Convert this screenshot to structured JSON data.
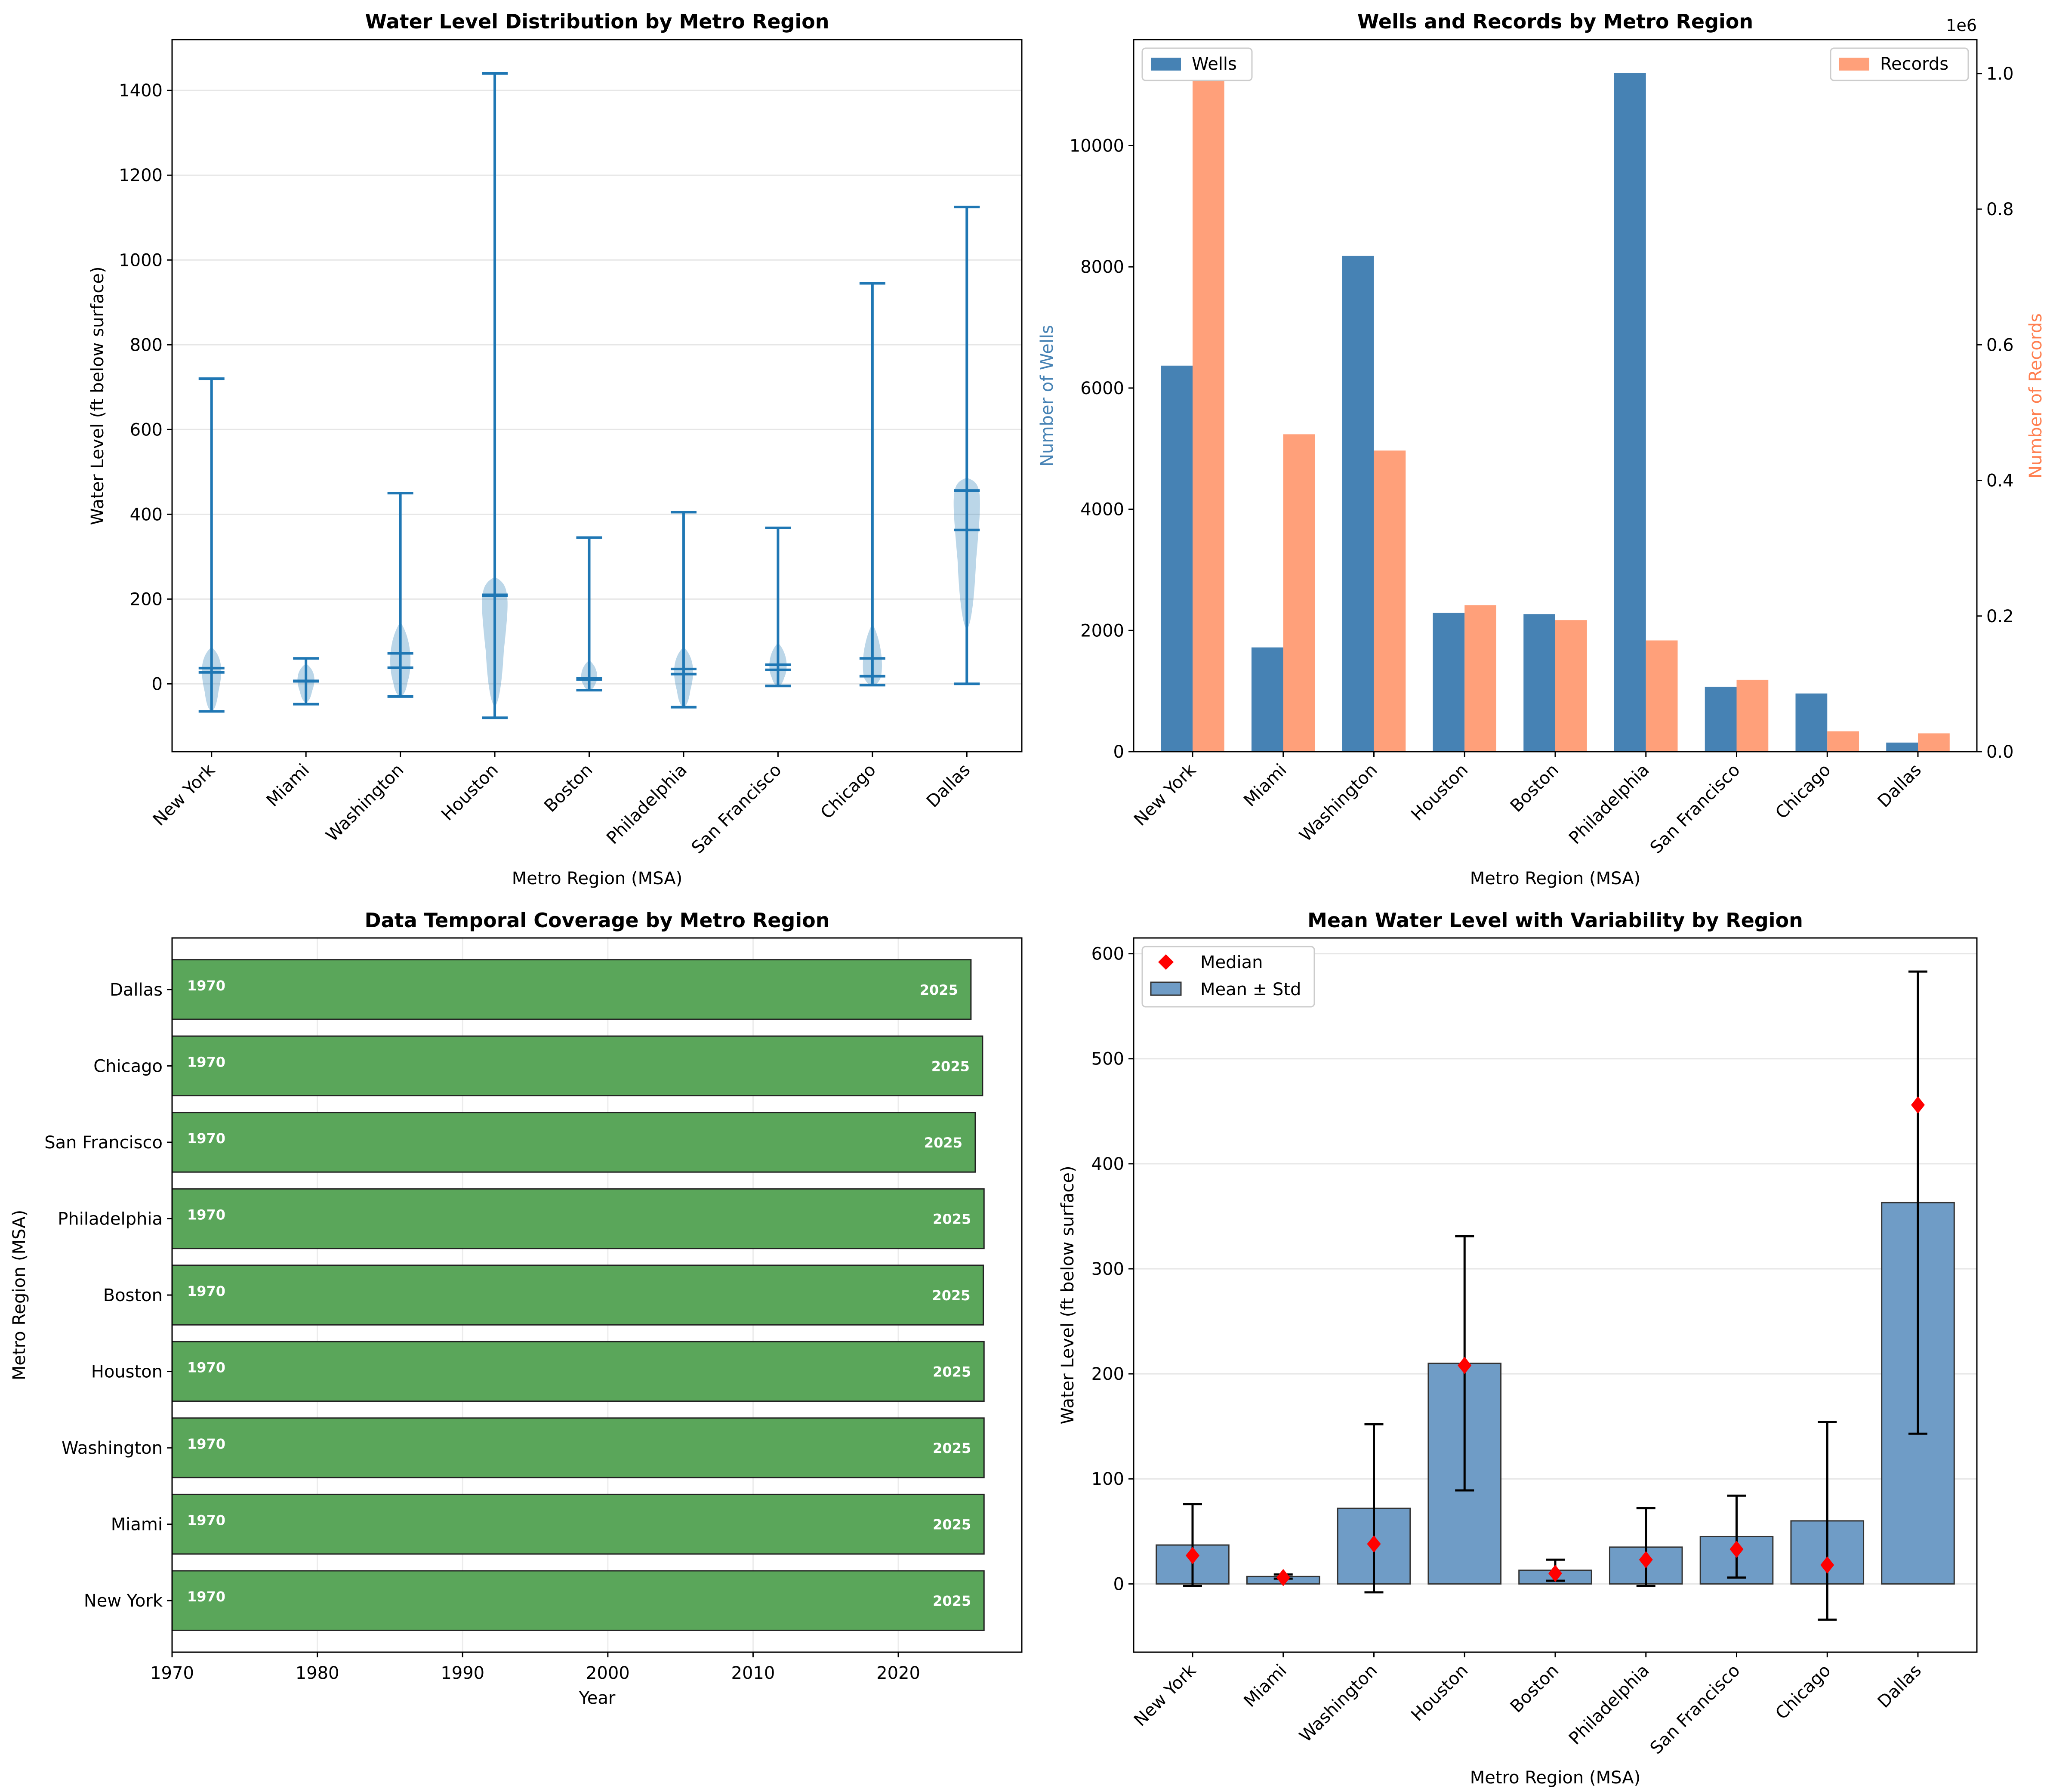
{
  "colors": {
    "violin_body": "#1f77b4",
    "violin_line": "#1f77b4",
    "wells": "#4682b4",
    "records": "#ffa07a",
    "coverage_bar": "#5aa65a",
    "mean_bar": "#6f9cc6",
    "median_marker": "#ff0000",
    "wells_axis_label": "#4682b4",
    "records_axis_label": "#ff7f50"
  },
  "regions": [
    "New York",
    "Miami",
    "Washington",
    "Houston",
    "Boston",
    "Philadelphia",
    "San Francisco",
    "Chicago",
    "Dallas"
  ],
  "chart_data": [
    {
      "type": "violin",
      "title": "Water Level Distribution by Metro Region",
      "xlabel": "Metro Region (MSA)",
      "ylabel": "Water Level (ft below surface)",
      "ylim": [
        -160,
        1520
      ],
      "yticks": [
        0,
        200,
        400,
        600,
        800,
        1000,
        1200,
        1400
      ],
      "grid": true,
      "categories": [
        "New York",
        "Miami",
        "Washington",
        "Houston",
        "Boston",
        "Philadelphia",
        "San Francisco",
        "Chicago",
        "Dallas"
      ],
      "series": [
        {
          "name": "New York",
          "min": -65,
          "max": 720,
          "mean": 37,
          "median": 27
        },
        {
          "name": "Miami",
          "min": -48,
          "max": 60,
          "mean": 7,
          "median": 6
        },
        {
          "name": "Washington",
          "min": -30,
          "max": 450,
          "mean": 72,
          "median": 38
        },
        {
          "name": "Houston",
          "min": -80,
          "max": 1440,
          "mean": 210,
          "median": 208
        },
        {
          "name": "Boston",
          "min": -15,
          "max": 345,
          "mean": 13,
          "median": 10
        },
        {
          "name": "Philadelphia",
          "min": -55,
          "max": 405,
          "mean": 35,
          "median": 23
        },
        {
          "name": "San Francisco",
          "min": -5,
          "max": 368,
          "mean": 45,
          "median": 33
        },
        {
          "name": "Chicago",
          "min": -3,
          "max": 945,
          "mean": 60,
          "median": 18
        },
        {
          "name": "Dallas",
          "min": 0,
          "max": 1125,
          "mean": 363,
          "median": 456
        }
      ]
    },
    {
      "type": "bar",
      "title": "Wells and Records by Metro Region",
      "xlabel": "Metro Region (MSA)",
      "ylabel": "Number of Wells",
      "ylabel_right": "Number of Records",
      "right_axis_offset_text": "1e6",
      "ylim": [
        0,
        11750
      ],
      "ylim_right": [
        0,
        1.05
      ],
      "yticks": [
        0,
        2000,
        4000,
        6000,
        8000,
        10000
      ],
      "yticks_right": [
        0.0,
        0.2,
        0.4,
        0.6,
        0.8,
        1.0
      ],
      "categories": [
        "New York",
        "Miami",
        "Washington",
        "Houston",
        "Boston",
        "Philadelphia",
        "San Francisco",
        "Chicago",
        "Dallas"
      ],
      "series": [
        {
          "name": "Wells",
          "axis": "left",
          "values": [
            6370,
            1720,
            8180,
            2290,
            2270,
            11200,
            1070,
            960,
            150
          ]
        },
        {
          "name": "Records",
          "axis": "right",
          "unit": "1e6",
          "values": [
            1.01,
            0.468,
            0.444,
            0.216,
            0.194,
            0.164,
            0.106,
            0.03,
            0.027
          ]
        }
      ],
      "legend": [
        "Wells",
        "Records"
      ]
    },
    {
      "type": "gantt",
      "title": "Data Temporal Coverage by Metro Region",
      "xlabel": "Year",
      "ylabel": "Metro Region (MSA)",
      "xlim": [
        1970,
        2028.5
      ],
      "xticks": [
        1970,
        1980,
        1990,
        2000,
        2010,
        2020
      ],
      "categories": [
        "New York",
        "Miami",
        "Washington",
        "Houston",
        "Boston",
        "Philadelphia",
        "San Francisco",
        "Chicago",
        "Dallas"
      ],
      "start": [
        1970,
        1970,
        1970,
        1970,
        1970,
        1970,
        1970,
        1970,
        1970
      ],
      "end": [
        2025.9,
        2025.9,
        2025.9,
        2025.9,
        2025.85,
        2025.9,
        2025.3,
        2025.8,
        2025.0
      ],
      "start_labels": [
        "1970",
        "1970",
        "1970",
        "1970",
        "1970",
        "1970",
        "1970",
        "1970",
        "1970"
      ],
      "end_labels": [
        "2025",
        "2025",
        "2025",
        "2025",
        "2025",
        "2025",
        "2025",
        "2025",
        "2025"
      ]
    },
    {
      "type": "bar",
      "title": "Mean Water Level with Variability by Region",
      "xlabel": "Metro Region (MSA)",
      "ylabel": "Water Level (ft below surface)",
      "ylim": [
        -65,
        615
      ],
      "yticks": [
        0,
        100,
        200,
        300,
        400,
        500,
        600
      ],
      "grid": true,
      "categories": [
        "New York",
        "Miami",
        "Washington",
        "Houston",
        "Boston",
        "Philadelphia",
        "San Francisco",
        "Chicago",
        "Dallas"
      ],
      "series": [
        {
          "name": "Mean ± Std",
          "values": [
            37,
            7,
            72,
            210,
            13,
            35,
            45,
            60,
            363
          ],
          "std": [
            39,
            2,
            80,
            121,
            10,
            37,
            39,
            94,
            220
          ]
        },
        {
          "name": "Median",
          "values": [
            27,
            6,
            38,
            208,
            10,
            23,
            33,
            18,
            456
          ]
        }
      ],
      "legend": [
        "Median",
        "Mean ± Std"
      ]
    }
  ]
}
